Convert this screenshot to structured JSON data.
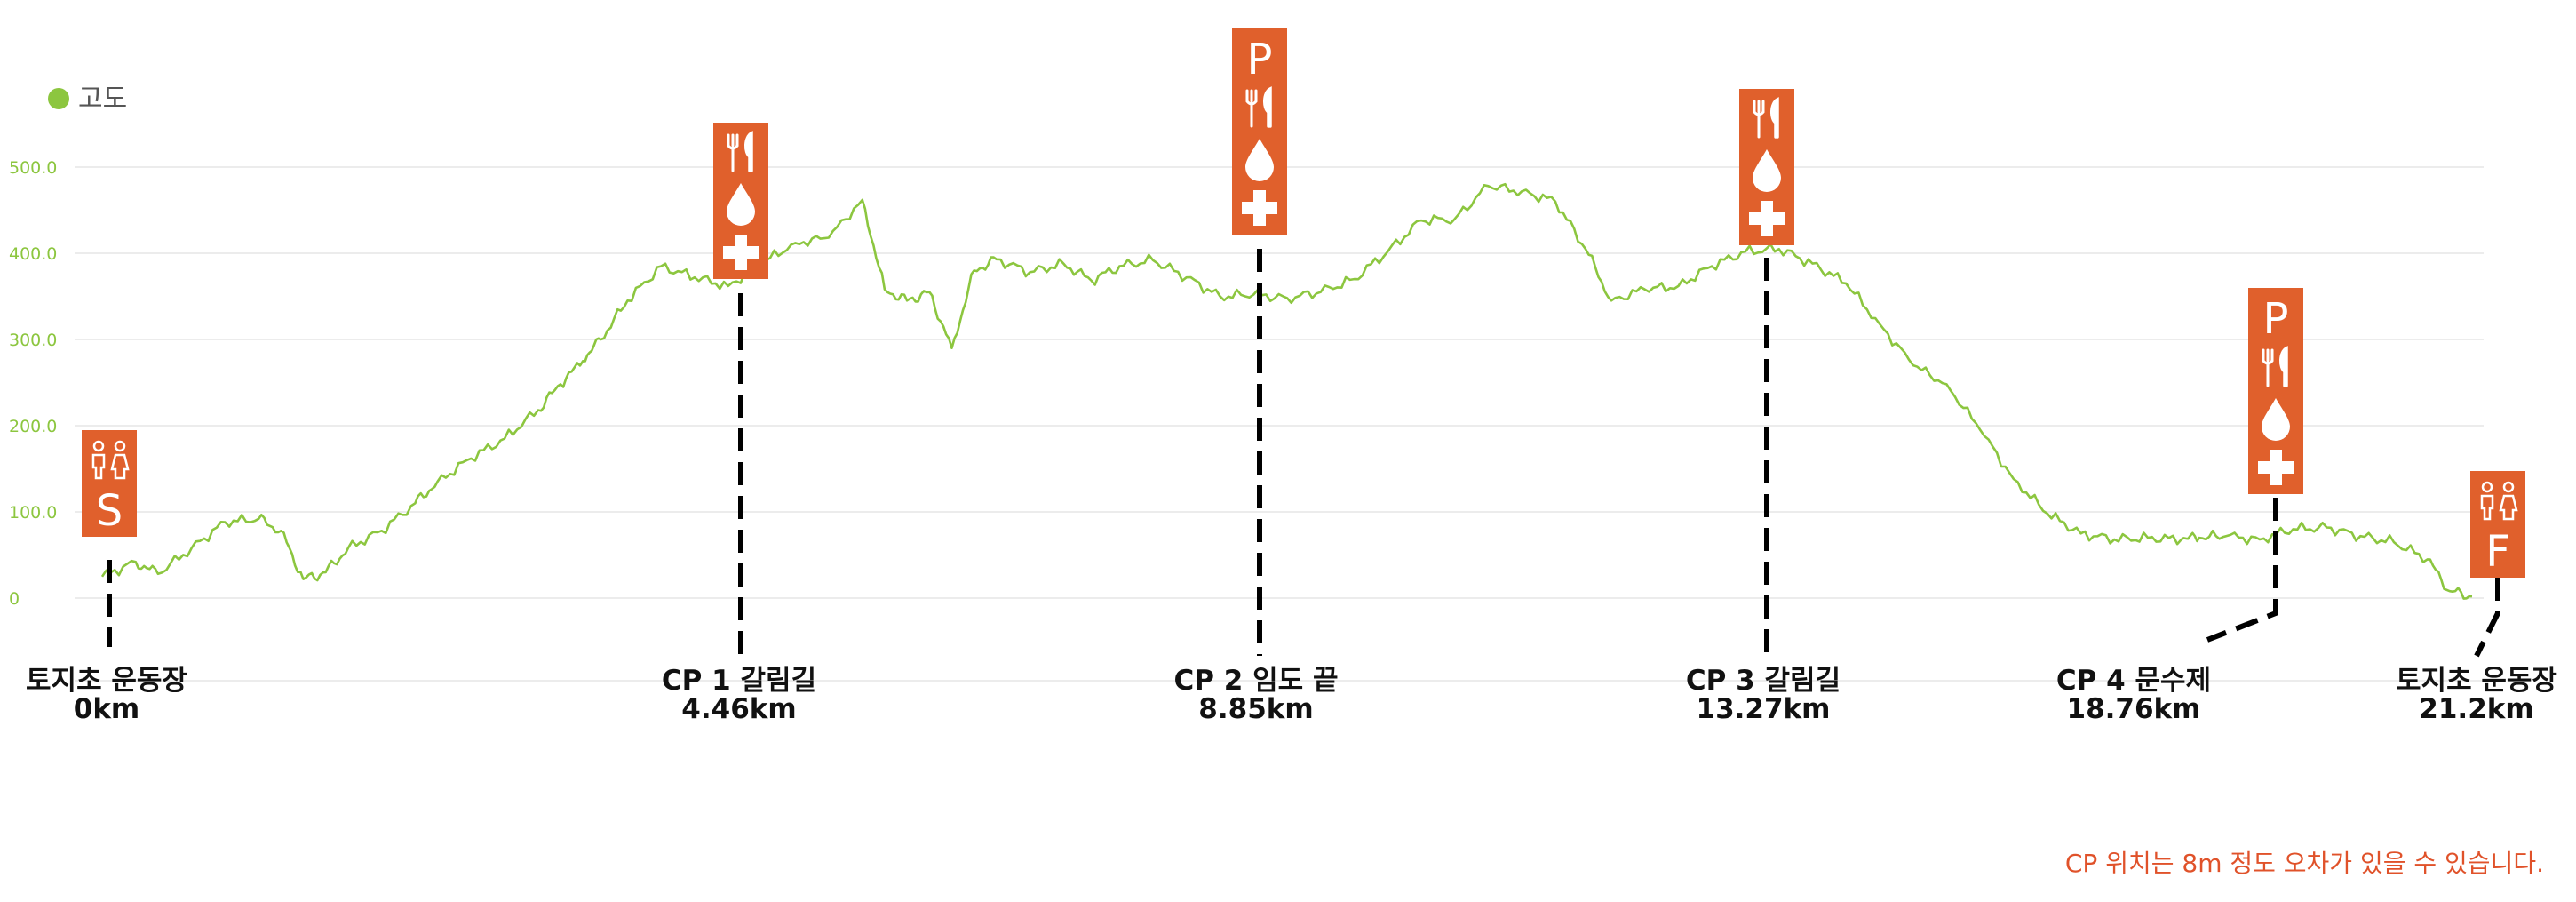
{
  "chart_data": {
    "type": "area",
    "legend": {
      "label": "고도",
      "color": "#8cc63f",
      "position": "top-left"
    },
    "series": [
      {
        "name": "고도",
        "color": "#8cc63f",
        "x": [
          0,
          0.3,
          0.5,
          0.8,
          1.1,
          1.4,
          1.6,
          1.8,
          2.0,
          2.2,
          2.5,
          2.8,
          3.0,
          3.3,
          3.6,
          3.9,
          4.1,
          4.3,
          4.46,
          4.7,
          5.0,
          5.3,
          5.6,
          5.9,
          6.2,
          6.5,
          6.8,
          7.0,
          7.2,
          7.4,
          7.6,
          7.8,
          8.0,
          8.3,
          8.6,
          8.85,
          9.1,
          9.4,
          9.7,
          10.0,
          10.3,
          10.6,
          10.9,
          11.2,
          11.5,
          11.8,
          12.1,
          12.4,
          12.7,
          13.0,
          13.27,
          13.5,
          13.8,
          14.1,
          14.4,
          14.7,
          15.0,
          15.3,
          15.6,
          15.9,
          16.2,
          16.5,
          16.8,
          17.1,
          17.4,
          17.7,
          18.0,
          18.3,
          18.6,
          18.76,
          19.0,
          19.3,
          19.6,
          19.9,
          20.2,
          20.5,
          20.8,
          21.0,
          21.2
        ],
        "values": [
          25,
          42,
          28,
          58,
          88,
          92,
          78,
          22,
          30,
          58,
          78,
          110,
          135,
          162,
          185,
          218,
          248,
          275,
          300,
          345,
          385,
          372,
          362,
          388,
          412,
          418,
          462,
          358,
          345,
          355,
          290,
          380,
          393,
          378,
          388,
          368,
          385,
          392,
          372,
          350,
          352,
          348,
          355,
          370,
          402,
          438,
          440,
          478,
          472,
          460,
          405,
          345,
          358,
          362,
          385,
          402,
          405,
          388,
          365,
          318,
          270,
          248,
          195,
          138,
          98,
          75,
          68,
          70,
          68,
          70,
          72,
          68,
          80,
          82,
          72,
          65,
          45,
          8,
          2
        ]
      }
    ],
    "yticks": [
      "0",
      "100.0",
      "200.0",
      "300.0",
      "400.0",
      "500.0"
    ],
    "ylim": [
      0,
      500
    ],
    "xlim": [
      0,
      21.2
    ],
    "grid": true,
    "checkpoints": [
      {
        "name": "토지초 운동장",
        "distance": "0km",
        "x": 0,
        "icon_rows": [
          "restroom-icon",
          "S"
        ]
      },
      {
        "name": "CP 1 갈림길",
        "distance": "4.46km",
        "x": 4.46,
        "icon_rows": [
          "food-icon",
          "water-icon",
          "medical-icon"
        ]
      },
      {
        "name": "CP 2 임도 끝",
        "distance": "8.85km",
        "x": 8.85,
        "icon_rows": [
          "P",
          "food-icon",
          "water-icon",
          "medical-icon"
        ]
      },
      {
        "name": "CP 3 갈림길",
        "distance": "13.27km",
        "x": 13.27,
        "icon_rows": [
          "food-icon",
          "water-icon",
          "medical-icon"
        ]
      },
      {
        "name": "CP 4 문수제",
        "distance": "18.76km",
        "x": 18.76,
        "icon_rows": [
          "P",
          "food-icon",
          "water-icon",
          "medical-icon"
        ]
      },
      {
        "name": "토지초 운동장",
        "distance": "21.2km",
        "x": 21.2,
        "icon_rows": [
          "restroom-icon",
          "F"
        ]
      }
    ],
    "marker_color": "#e0602c"
  },
  "footnote": "CP 위치는 8m 정도 오차가 있을 수 있습니다."
}
